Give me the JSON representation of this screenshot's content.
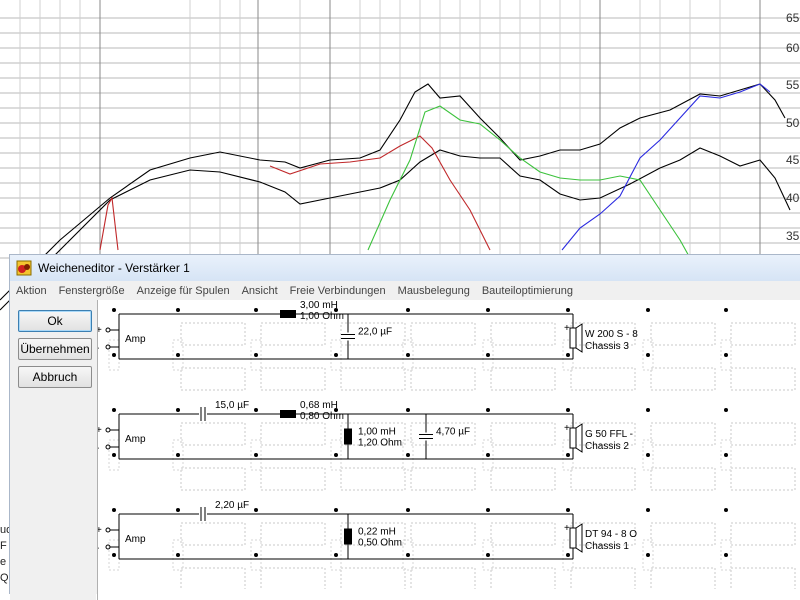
{
  "plot": {
    "y_ticks": [
      "65",
      "60",
      "55",
      "50",
      "45",
      "40",
      "35"
    ],
    "curve_colors": {
      "black": "#000000",
      "red": "#c0282a",
      "green": "#3cc23c",
      "blue": "#2a2ae0"
    },
    "left_fragments": [
      "ud",
      "F",
      "e",
      "Q"
    ]
  },
  "window": {
    "title": "Weicheneditor - Verstärker 1",
    "menu": [
      "Aktion",
      "Fenstergröße",
      "Anzeige für Spulen",
      "Ansicht",
      "Freie Verbindungen",
      "Mausbelegung",
      "Bauteiloptimierung"
    ],
    "buttons": {
      "ok": "Ok",
      "apply": "Übernehmen",
      "cancel": "Abbruch"
    }
  },
  "circuits": [
    {
      "source": "Amp",
      "plus": "+",
      "minus": "-",
      "components": [
        {
          "kind": "coil",
          "lines": [
            "3,00 mH",
            "1,00 Ohm"
          ]
        },
        {
          "kind": "cap_shunt",
          "lines": [
            "22,0 µF"
          ]
        }
      ],
      "driver": [
        "W 200 S - 8",
        "Chassis 3"
      ]
    },
    {
      "source": "Amp",
      "plus": "+",
      "minus": "-",
      "components": [
        {
          "kind": "cap_series",
          "lines": [
            "15,0 µF"
          ]
        },
        {
          "kind": "coil",
          "lines": [
            "0,68 mH",
            "0,80 Ohm"
          ]
        },
        {
          "kind": "coil_shunt",
          "lines": [
            "1,00 mH",
            "1,20 Ohm"
          ]
        },
        {
          "kind": "cap_shunt",
          "lines": [
            "4,70 µF"
          ]
        }
      ],
      "driver": [
        "G 50 FFL -",
        "Chassis 2"
      ]
    },
    {
      "source": "Amp",
      "plus": "+",
      "minus": "-",
      "components": [
        {
          "kind": "cap_series",
          "lines": [
            "2,20 µF"
          ]
        },
        {
          "kind": "coil_shunt",
          "lines": [
            "0,22 mH",
            "0,50 Ohm"
          ]
        }
      ],
      "driver": [
        "DT 94 - 8 O",
        "Chassis 1"
      ]
    }
  ]
}
